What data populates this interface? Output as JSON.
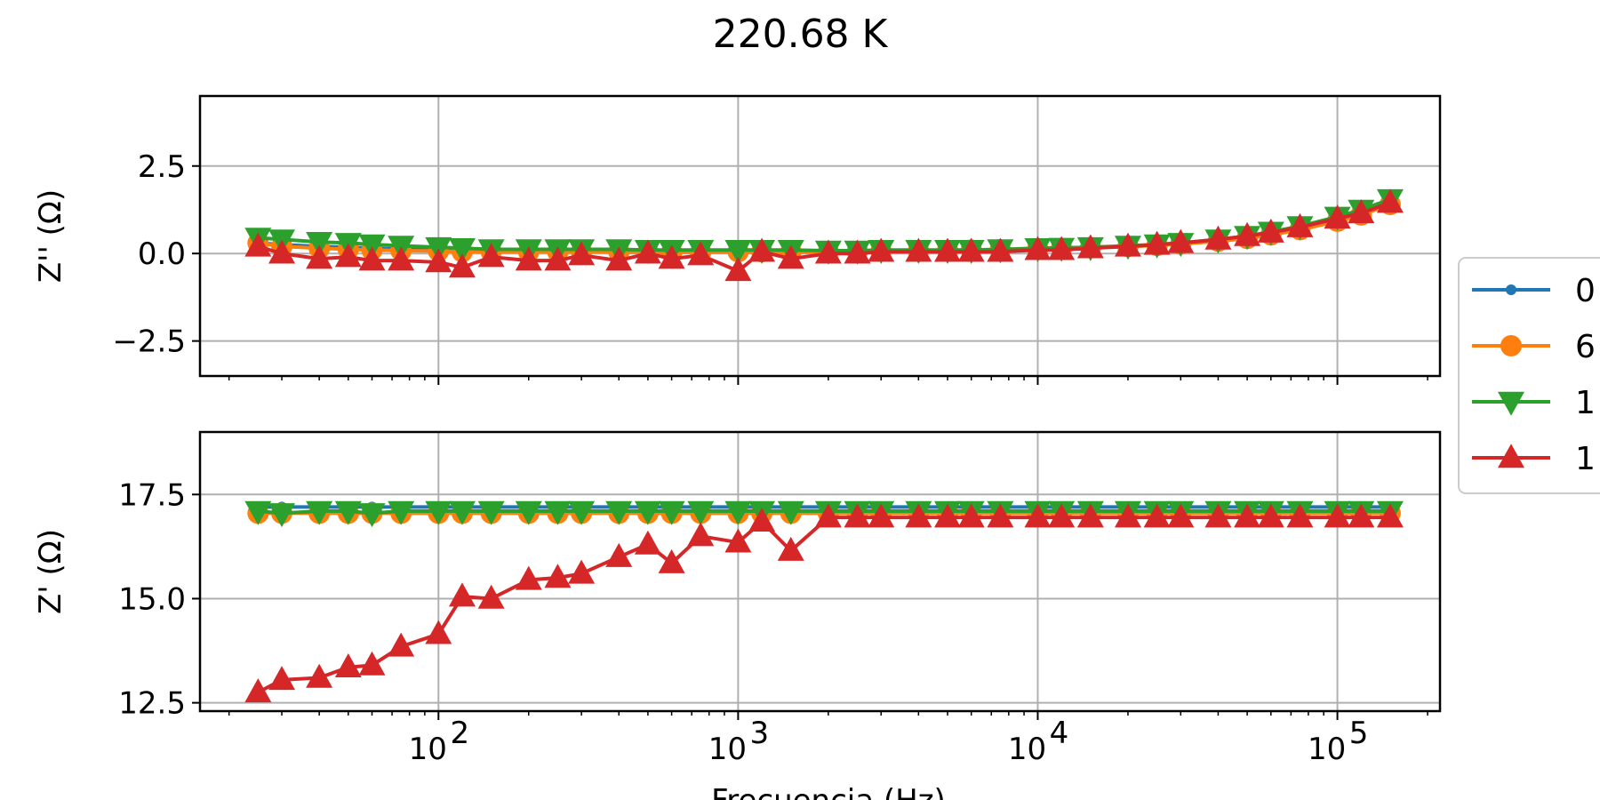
{
  "chart_data": {
    "type": "line",
    "title": "220.68 K",
    "xlabel": "Frecuencia (Hz)",
    "xscale": "log",
    "xlim": [
      16,
      220000
    ],
    "x_tick_labels": [
      "10",
      "10",
      "10",
      "10"
    ],
    "x_tick_exponents": [
      "2",
      "3",
      "4",
      "5"
    ],
    "x_tick_values": [
      100,
      1000,
      10000,
      100000
    ],
    "grid": true,
    "legend_position": "right",
    "x": [
      25,
      30,
      40,
      50,
      60,
      75,
      100,
      120,
      150,
      200,
      250,
      300,
      400,
      500,
      600,
      750,
      1000,
      1200,
      1500,
      2000,
      2500,
      3000,
      4000,
      5000,
      6000,
      7500,
      10000,
      12000,
      15000,
      20000,
      25000,
      30000,
      40000,
      50000,
      60000,
      75000,
      100000,
      120000,
      150000
    ],
    "series_colors": [
      "#1f77b4",
      "#ff7f0e",
      "#2ca02c",
      "#d62728"
    ],
    "series_markers": [
      "point",
      "circle",
      "triangle-down",
      "triangle-up"
    ],
    "legend_labels": [
      "0",
      "6",
      "1",
      "1"
    ],
    "panels": [
      {
        "name": "top",
        "ylabel": "Z'' (Ω)",
        "ylim": [
          -3.5,
          4.5
        ],
        "y_ticks": [
          -2.5,
          0.0,
          2.5
        ],
        "y_tick_labels": [
          "−2.5",
          "0.0",
          "2.5"
        ],
        "series": [
          {
            "values": [
              0.3,
              0.25,
              0.2,
              0.18,
              0.15,
              0.12,
              0.1,
              0.08,
              0.08,
              0.07,
              0.06,
              0.06,
              0.05,
              0.05,
              0.05,
              0.05,
              0.05,
              0.05,
              0.05,
              0.05,
              0.06,
              0.07,
              0.08,
              0.09,
              0.1,
              0.11,
              0.13,
              0.15,
              0.17,
              0.2,
              0.24,
              0.28,
              0.36,
              0.44,
              0.55,
              0.7,
              0.95,
              1.15,
              1.45
            ]
          },
          {
            "values": [
              0.3,
              0.2,
              0.15,
              0.12,
              0.1,
              0.08,
              0.07,
              0.05,
              0.05,
              0.05,
              0.05,
              0.05,
              0.05,
              0.04,
              0.04,
              0.04,
              0.05,
              0.05,
              0.05,
              0.05,
              0.06,
              0.07,
              0.08,
              0.09,
              0.1,
              0.11,
              0.13,
              0.15,
              0.17,
              0.2,
              0.23,
              0.27,
              0.35,
              0.43,
              0.53,
              0.68,
              0.92,
              1.1,
              1.4
            ]
          },
          {
            "values": [
              0.45,
              0.4,
              0.33,
              0.3,
              0.26,
              0.22,
              0.18,
              0.15,
              0.12,
              0.12,
              0.12,
              0.12,
              0.12,
              0.1,
              0.1,
              0.1,
              0.1,
              0.1,
              0.1,
              0.08,
              0.08,
              0.1,
              0.1,
              0.1,
              0.1,
              0.12,
              0.15,
              0.16,
              0.18,
              0.22,
              0.26,
              0.3,
              0.4,
              0.5,
              0.62,
              0.78,
              1.05,
              1.25,
              1.55
            ]
          },
          {
            "values": [
              0.2,
              0.0,
              -0.15,
              -0.1,
              -0.2,
              -0.2,
              -0.25,
              -0.4,
              -0.1,
              -0.2,
              -0.2,
              -0.05,
              -0.2,
              0.0,
              -0.15,
              -0.05,
              -0.5,
              0.05,
              -0.15,
              0.0,
              0.0,
              0.05,
              0.05,
              0.05,
              0.05,
              0.05,
              0.1,
              0.1,
              0.15,
              0.2,
              0.25,
              0.3,
              0.4,
              0.5,
              0.6,
              0.75,
              1.0,
              1.15,
              1.45
            ]
          }
        ]
      },
      {
        "name": "bottom",
        "ylabel": "Z' (Ω)",
        "ylim": [
          12.3,
          19.0
        ],
        "y_ticks": [
          12.5,
          15.0,
          17.5
        ],
        "y_tick_labels": [
          "12.5",
          "15.0",
          "17.5"
        ],
        "series": [
          {
            "values": [
              17.2,
              17.2,
              17.2,
              17.2,
              17.2,
              17.2,
              17.2,
              17.2,
              17.2,
              17.2,
              17.2,
              17.2,
              17.2,
              17.2,
              17.2,
              17.2,
              17.2,
              17.2,
              17.2,
              17.2,
              17.2,
              17.2,
              17.2,
              17.2,
              17.2,
              17.2,
              17.2,
              17.2,
              17.2,
              17.2,
              17.2,
              17.2,
              17.2,
              17.2,
              17.2,
              17.2,
              17.2,
              17.2,
              17.2
            ]
          },
          {
            "values": [
              17.05,
              17.05,
              17.05,
              17.05,
              17.05,
              17.05,
              17.05,
              17.05,
              17.05,
              17.05,
              17.05,
              17.05,
              17.05,
              17.05,
              17.05,
              17.05,
              17.05,
              17.05,
              17.05,
              17.05,
              17.05,
              17.05,
              17.05,
              17.05,
              17.05,
              17.05,
              17.05,
              17.05,
              17.05,
              17.05,
              17.05,
              17.05,
              17.05,
              17.05,
              17.05,
              17.05,
              17.05,
              17.05,
              17.05
            ]
          },
          {
            "values": [
              17.1,
              17.05,
              17.1,
              17.1,
              17.05,
              17.1,
              17.1,
              17.1,
              17.1,
              17.1,
              17.1,
              17.1,
              17.1,
              17.1,
              17.1,
              17.1,
              17.1,
              17.1,
              17.1,
              17.1,
              17.1,
              17.1,
              17.1,
              17.1,
              17.1,
              17.1,
              17.1,
              17.1,
              17.1,
              17.1,
              17.1,
              17.1,
              17.1,
              17.1,
              17.1,
              17.1,
              17.1,
              17.1,
              17.1
            ]
          },
          {
            "values": [
              12.75,
              13.05,
              13.1,
              13.35,
              13.4,
              13.85,
              14.15,
              15.05,
              15.0,
              15.45,
              15.5,
              15.6,
              16.0,
              16.3,
              15.85,
              16.5,
              16.35,
              16.85,
              16.15,
              16.95,
              16.95,
              16.95,
              16.95,
              16.95,
              16.95,
              16.95,
              16.95,
              16.95,
              16.95,
              16.95,
              16.95,
              16.95,
              16.95,
              16.95,
              16.95,
              16.95,
              16.95,
              16.95,
              16.95
            ]
          }
        ]
      }
    ]
  }
}
